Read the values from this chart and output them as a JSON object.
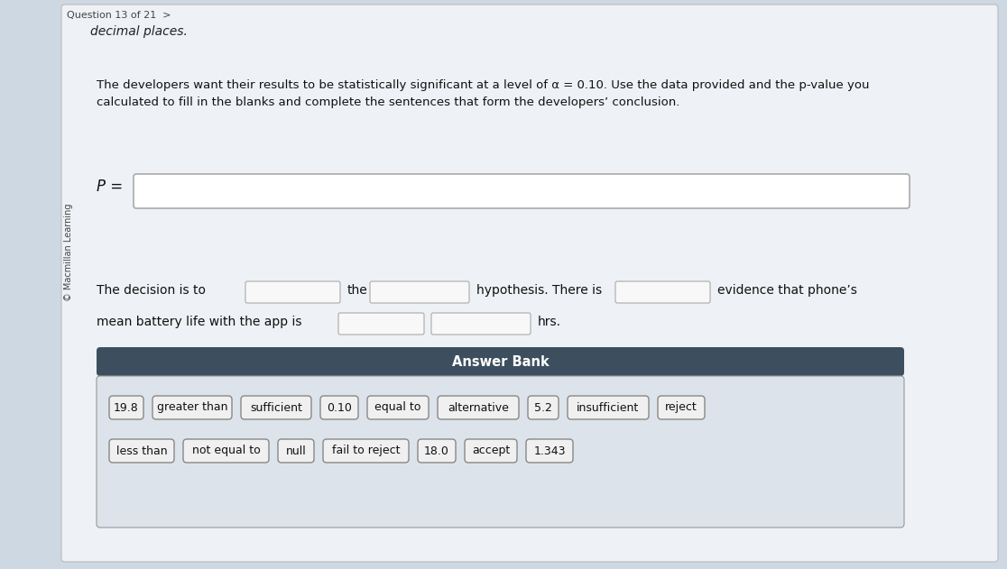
{
  "bg_color": "#cdd8e3",
  "page_bg": "#eef1f5",
  "top_text": "decimal places.",
  "side_label": "© Macmillan Learning",
  "para_line1": "The developers want their results to be statistically significant at a level of α = 0.10. Use the data provided and the p-value you",
  "para_line2": "calculated to fill in the blanks and complete the sentences that form the developers’ conclusion.",
  "p_label": "P =",
  "question_header": "Question 13 of 21  >",
  "answer_bank_header": "Answer Bank",
  "answer_bank_row1": [
    "19.8",
    "greater than",
    "sufficient",
    "0.10",
    "equal to",
    "alternative",
    "5.2",
    "insufficient",
    "reject"
  ],
  "answer_bank_row2": [
    "less than",
    "not equal to",
    "null",
    "fail to reject",
    "18.0",
    "accept",
    "1.343"
  ],
  "header_bg": "#3d4f5e",
  "header_text_color": "#ffffff",
  "main_box_fill": "#ffffff",
  "main_box_border": "#aaaaaa",
  "answer_box_fill": "#f0f0f0",
  "answer_box_border": "#888888",
  "answer_bank_bg": "#dde3ea",
  "blank_box_border": "#aaaaaa",
  "blank_box_fill": "#f8f8f8"
}
